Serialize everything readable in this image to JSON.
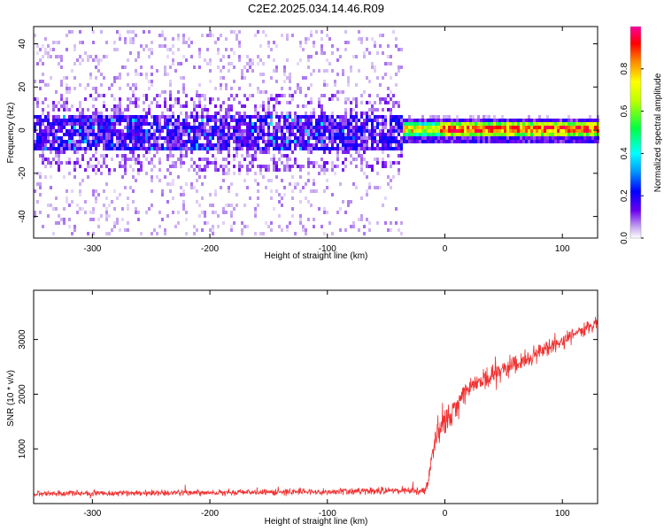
{
  "title": "C2E2.2025.034.14.46.R09",
  "colors": {
    "snr_line": "#f03030",
    "frame": "#000000",
    "background": "#ffffff"
  },
  "chart_data": [
    {
      "type": "heatmap",
      "xlabel": "Height of straight line (km)",
      "ylabel": "Frequency (Hz)",
      "xlim": [
        -350,
        130
      ],
      "ylim": [
        -50,
        48
      ],
      "x_ticks": [
        -300,
        -200,
        -100,
        0,
        100
      ],
      "x_tick_labels": [
        "-300",
        "-200",
        "-100",
        "0",
        "100"
      ],
      "y_ticks": [
        -40,
        -20,
        0,
        20,
        40
      ],
      "y_tick_labels": [
        "-40",
        "-20",
        "0",
        "20",
        "40"
      ],
      "colorbar": {
        "label": "Normalized spectral amplitude",
        "range": [
          0,
          1
        ],
        "ticks": [
          0.0,
          0.2,
          0.4,
          0.6,
          0.8
        ],
        "tick_labels": [
          "0.0",
          "0.2",
          "0.4",
          "0.6",
          "0.8"
        ]
      },
      "features": {
        "noise_region_x": [
          -350,
          -38
        ],
        "noise_band_center_hz": 0,
        "noise_band_halfwidth_hz": 8,
        "noise_scatter_halfwidth_hz": 48,
        "noise_amplitude_core": 0.12,
        "signal_region_x": [
          -38,
          130
        ],
        "signal_center_hz": 1,
        "signal_halfwidth_hz": 3,
        "signal_amplitude_core": 0.9
      }
    },
    {
      "type": "line",
      "xlabel": "Height of straight line (km)",
      "ylabel": "SNR (10 * v/v)",
      "xlim": [
        -350,
        130
      ],
      "ylim": [
        0,
        3900
      ],
      "x_ticks": [
        -300,
        -200,
        -100,
        0,
        100
      ],
      "x_tick_labels": [
        "-300",
        "-200",
        "-100",
        "0",
        "100"
      ],
      "y_ticks": [
        1000,
        2000,
        3000
      ],
      "y_tick_labels": [
        "1000",
        "2000",
        "3000"
      ],
      "series": [
        {
          "color": "#f03030",
          "anchors": {
            "x": [
              -350,
              -200,
              -100,
              -20,
              -15,
              -8,
              0,
              20,
              50,
              80,
              110,
              130
            ],
            "y": [
              180,
              200,
              220,
              240,
              300,
              1200,
              1500,
              2100,
              2450,
              2750,
              3100,
              3300
            ]
          },
          "noise_amplitude": [
            100,
            100,
            110,
            140,
            200,
            500,
            550,
            400,
            350,
            300,
            280,
            260
          ]
        }
      ]
    }
  ]
}
